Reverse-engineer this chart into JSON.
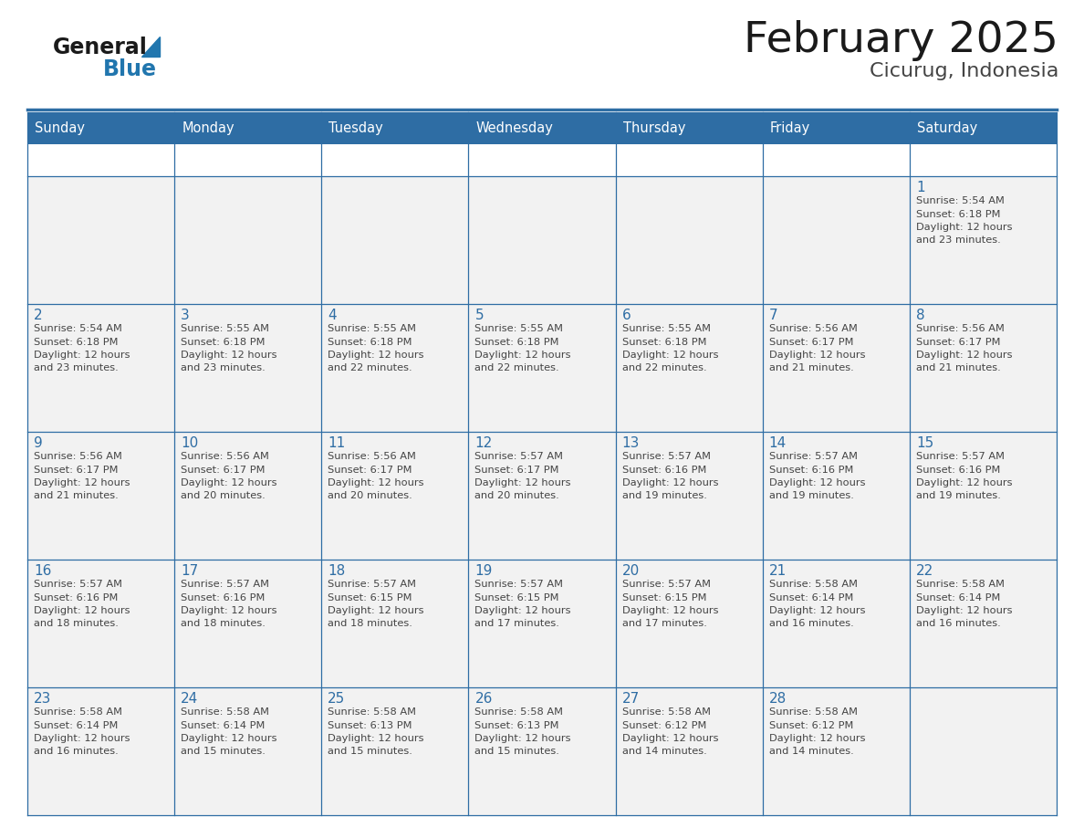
{
  "title": "February 2025",
  "subtitle": "Cicurug, Indonesia",
  "header_bg": "#2E6DA4",
  "header_text": "#FFFFFF",
  "cell_bg_light": "#F2F2F2",
  "border_color": "#2E6DA4",
  "day_headers": [
    "Sunday",
    "Monday",
    "Tuesday",
    "Wednesday",
    "Thursday",
    "Friday",
    "Saturday"
  ],
  "title_color": "#1a1a1a",
  "subtitle_color": "#444444",
  "day_number_color": "#2E6DA4",
  "detail_color": "#444444",
  "logo_general_color": "#1a1a1a",
  "logo_blue_color": "#2176AE",
  "weeks": [
    [
      {
        "day": null,
        "info": ""
      },
      {
        "day": null,
        "info": ""
      },
      {
        "day": null,
        "info": ""
      },
      {
        "day": null,
        "info": ""
      },
      {
        "day": null,
        "info": ""
      },
      {
        "day": null,
        "info": ""
      },
      {
        "day": 1,
        "info": "Sunrise: 5:54 AM\nSunset: 6:18 PM\nDaylight: 12 hours\nand 23 minutes."
      }
    ],
    [
      {
        "day": 2,
        "info": "Sunrise: 5:54 AM\nSunset: 6:18 PM\nDaylight: 12 hours\nand 23 minutes."
      },
      {
        "day": 3,
        "info": "Sunrise: 5:55 AM\nSunset: 6:18 PM\nDaylight: 12 hours\nand 23 minutes."
      },
      {
        "day": 4,
        "info": "Sunrise: 5:55 AM\nSunset: 6:18 PM\nDaylight: 12 hours\nand 22 minutes."
      },
      {
        "day": 5,
        "info": "Sunrise: 5:55 AM\nSunset: 6:18 PM\nDaylight: 12 hours\nand 22 minutes."
      },
      {
        "day": 6,
        "info": "Sunrise: 5:55 AM\nSunset: 6:18 PM\nDaylight: 12 hours\nand 22 minutes."
      },
      {
        "day": 7,
        "info": "Sunrise: 5:56 AM\nSunset: 6:17 PM\nDaylight: 12 hours\nand 21 minutes."
      },
      {
        "day": 8,
        "info": "Sunrise: 5:56 AM\nSunset: 6:17 PM\nDaylight: 12 hours\nand 21 minutes."
      }
    ],
    [
      {
        "day": 9,
        "info": "Sunrise: 5:56 AM\nSunset: 6:17 PM\nDaylight: 12 hours\nand 21 minutes."
      },
      {
        "day": 10,
        "info": "Sunrise: 5:56 AM\nSunset: 6:17 PM\nDaylight: 12 hours\nand 20 minutes."
      },
      {
        "day": 11,
        "info": "Sunrise: 5:56 AM\nSunset: 6:17 PM\nDaylight: 12 hours\nand 20 minutes."
      },
      {
        "day": 12,
        "info": "Sunrise: 5:57 AM\nSunset: 6:17 PM\nDaylight: 12 hours\nand 20 minutes."
      },
      {
        "day": 13,
        "info": "Sunrise: 5:57 AM\nSunset: 6:16 PM\nDaylight: 12 hours\nand 19 minutes."
      },
      {
        "day": 14,
        "info": "Sunrise: 5:57 AM\nSunset: 6:16 PM\nDaylight: 12 hours\nand 19 minutes."
      },
      {
        "day": 15,
        "info": "Sunrise: 5:57 AM\nSunset: 6:16 PM\nDaylight: 12 hours\nand 19 minutes."
      }
    ],
    [
      {
        "day": 16,
        "info": "Sunrise: 5:57 AM\nSunset: 6:16 PM\nDaylight: 12 hours\nand 18 minutes."
      },
      {
        "day": 17,
        "info": "Sunrise: 5:57 AM\nSunset: 6:16 PM\nDaylight: 12 hours\nand 18 minutes."
      },
      {
        "day": 18,
        "info": "Sunrise: 5:57 AM\nSunset: 6:15 PM\nDaylight: 12 hours\nand 18 minutes."
      },
      {
        "day": 19,
        "info": "Sunrise: 5:57 AM\nSunset: 6:15 PM\nDaylight: 12 hours\nand 17 minutes."
      },
      {
        "day": 20,
        "info": "Sunrise: 5:57 AM\nSunset: 6:15 PM\nDaylight: 12 hours\nand 17 minutes."
      },
      {
        "day": 21,
        "info": "Sunrise: 5:58 AM\nSunset: 6:14 PM\nDaylight: 12 hours\nand 16 minutes."
      },
      {
        "day": 22,
        "info": "Sunrise: 5:58 AM\nSunset: 6:14 PM\nDaylight: 12 hours\nand 16 minutes."
      }
    ],
    [
      {
        "day": 23,
        "info": "Sunrise: 5:58 AM\nSunset: 6:14 PM\nDaylight: 12 hours\nand 16 minutes."
      },
      {
        "day": 24,
        "info": "Sunrise: 5:58 AM\nSunset: 6:14 PM\nDaylight: 12 hours\nand 15 minutes."
      },
      {
        "day": 25,
        "info": "Sunrise: 5:58 AM\nSunset: 6:13 PM\nDaylight: 12 hours\nand 15 minutes."
      },
      {
        "day": 26,
        "info": "Sunrise: 5:58 AM\nSunset: 6:13 PM\nDaylight: 12 hours\nand 15 minutes."
      },
      {
        "day": 27,
        "info": "Sunrise: 5:58 AM\nSunset: 6:12 PM\nDaylight: 12 hours\nand 14 minutes."
      },
      {
        "day": 28,
        "info": "Sunrise: 5:58 AM\nSunset: 6:12 PM\nDaylight: 12 hours\nand 14 minutes."
      },
      {
        "day": null,
        "info": ""
      }
    ]
  ],
  "fig_width": 11.88,
  "fig_height": 9.18,
  "dpi": 100
}
